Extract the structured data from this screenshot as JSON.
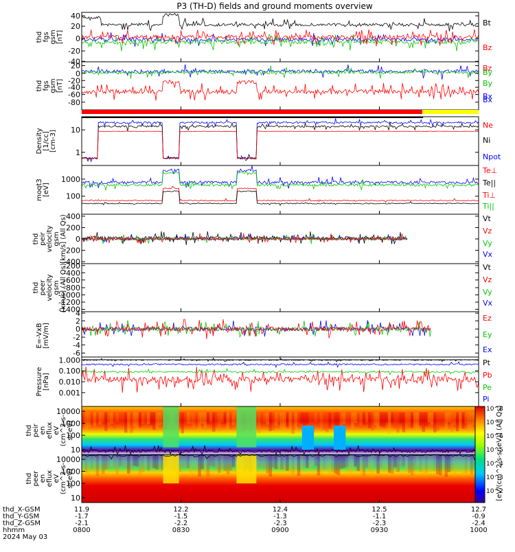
{
  "title": "P3 (TH-D) fields and ground moments overview",
  "colors": {
    "black": "#000000",
    "red": "#ff0000",
    "green": "#00c800",
    "blue": "#0000ff",
    "yellow": "#ffff00"
  },
  "x_ticks": [
    "0800",
    "0830",
    "0900",
    "0930",
    "1000"
  ],
  "footer": {
    "rows": [
      {
        "label": "thd_X-GSM",
        "values": [
          "11.9",
          "12.2",
          "12.4",
          "12.5",
          "12.7"
        ]
      },
      {
        "label": "thd_Y-GSM",
        "values": [
          "-1.7",
          "-1.5",
          "-1.3",
          "-1.1",
          "-0.9"
        ]
      },
      {
        "label": "thd_Z-GSM",
        "values": [
          "-2.1",
          "-2.2",
          "-2.3",
          "-2.3",
          "-2.4"
        ]
      },
      {
        "label": "hhmm",
        "values": [
          "0800",
          "0830",
          "0900",
          "0930",
          "1000"
        ]
      }
    ],
    "date": "2024 May 03"
  },
  "colorbar": {
    "ticks": [
      "10^8",
      "10^7",
      "10^6",
      "10^5",
      "10^4",
      "10^3",
      "10^2"
    ],
    "label": "[eV/(cm^2-s-sr-eV)] (All Qs)"
  },
  "chart_data": [
    {
      "type": "line",
      "ylabel": [
        "thd",
        "fgs",
        "gsm",
        "[nT]"
      ],
      "ylim": [
        -40,
        50
      ],
      "ticks": [
        "40",
        "20",
        "0",
        "-20",
        "-40"
      ],
      "series": [
        {
          "name": "Bt",
          "color": "#000000"
        },
        {
          "name": "Bz",
          "color": "#ff0000"
        },
        {
          "name": "By",
          "color": "#00c800"
        },
        {
          "name": "Bx",
          "color": "#0000ff"
        }
      ]
    },
    {
      "type": "line",
      "ylabel": [
        "thd",
        "fgs",
        "gsm",
        "[nT]"
      ],
      "ylim": [
        -90,
        30
      ],
      "ticks": [
        "20",
        "0",
        "-20",
        "-40",
        "-60",
        "-80"
      ],
      "series": [
        {
          "name": "Bz",
          "color": "#ff0000"
        },
        {
          "name": "By",
          "color": "#00c800"
        },
        {
          "name": "Bx",
          "color": "#0000ff"
        }
      ]
    },
    {
      "type": "line",
      "ylabel": [
        "Density",
        "[1/cc]",
        "[cm-3]"
      ],
      "ylim": [
        0.3,
        40
      ],
      "scale": "log",
      "ticks": [
        "10",
        "1"
      ],
      "series": [
        {
          "name": "Ne",
          "color": "#ff0000"
        },
        {
          "name": "Ni",
          "color": "#000000"
        },
        {
          "name": "Npot",
          "color": "#0000ff"
        }
      ]
    },
    {
      "type": "line",
      "ylabel": [
        "moqt3",
        "[eV]"
      ],
      "ylim": [
        20,
        3000
      ],
      "scale": "log",
      "ticks": [
        "1000",
        "100"
      ],
      "series": [
        {
          "name": "Te⊥",
          "color": "#ff0000"
        },
        {
          "name": "Te||",
          "color": "#000000"
        },
        {
          "name": "Ti⊥",
          "color": "#ff0000"
        },
        {
          "name": "Ti||",
          "color": "#00c800"
        }
      ]
    },
    {
      "type": "line",
      "ylabel": [
        "thd",
        "peir",
        "velocity",
        "gsm",
        "[km/s] (All Qs)"
      ],
      "ylim": [
        -400,
        400
      ],
      "ticks": [
        "400",
        "200",
        "0",
        "-200",
        "-400"
      ],
      "series": [
        {
          "name": "Vt",
          "color": "#000000"
        },
        {
          "name": "Vz",
          "color": "#ff0000"
        },
        {
          "name": "Vy",
          "color": "#00c800"
        },
        {
          "name": "Vx",
          "color": "#0000ff"
        }
      ]
    },
    {
      "type": "line",
      "ylabel": [
        "thd",
        "peer",
        "velocity",
        "gsm",
        "[km/s] (All Qs)"
      ],
      "ylim": [
        -1400,
        -200
      ],
      "ticks": [
        "-200",
        "-400",
        "-600",
        "-800",
        "-1000",
        "-1200",
        "-1400"
      ],
      "series": [
        {
          "name": "Vt",
          "color": "#000000"
        },
        {
          "name": "Vz",
          "color": "#ff0000"
        },
        {
          "name": "Vy",
          "color": "#00c800"
        },
        {
          "name": "Vx",
          "color": "#0000ff"
        }
      ]
    },
    {
      "type": "line",
      "ylabel": [
        "E=-VxB",
        "[mV/m]"
      ],
      "ylim": [
        -6,
        4
      ],
      "ticks": [
        "4",
        "2",
        "0",
        "-2",
        "-4",
        "-6"
      ],
      "series": [
        {
          "name": "Ez",
          "color": "#ff0000"
        },
        {
          "name": "Ey",
          "color": "#00c800"
        },
        {
          "name": "Ex",
          "color": "#0000ff"
        }
      ]
    },
    {
      "type": "line",
      "ylabel": [
        "Pressure",
        "[nPa]"
      ],
      "ylim": [
        0.0001,
        1
      ],
      "scale": "log",
      "ticks": [
        "1.000",
        "0.100",
        "0.010",
        "0.001"
      ],
      "series": [
        {
          "name": "Pt",
          "color": "#000000"
        },
        {
          "name": "Pb",
          "color": "#ff0000"
        },
        {
          "name": "Pe",
          "color": "#00c800"
        },
        {
          "name": "Pi",
          "color": "#0000ff"
        }
      ]
    },
    {
      "type": "heatmap",
      "ylabel": [
        "thd",
        "peir",
        "en",
        "eflux",
        "eV",
        "(cm^2-s-",
        "sr-eV)"
      ],
      "ylim": [
        5,
        20000
      ],
      "scale": "log",
      "ticks": [
        "10000",
        "1000",
        "100",
        "10"
      ]
    },
    {
      "type": "heatmap",
      "ylabel": [
        "thd",
        "peer",
        "en",
        "eflux",
        "eV",
        "(cm^2-s-",
        "sr-eV)"
      ],
      "ylim": [
        5,
        20000
      ],
      "scale": "log",
      "ticks": [
        "10000",
        "1000",
        "100",
        "10"
      ]
    }
  ]
}
